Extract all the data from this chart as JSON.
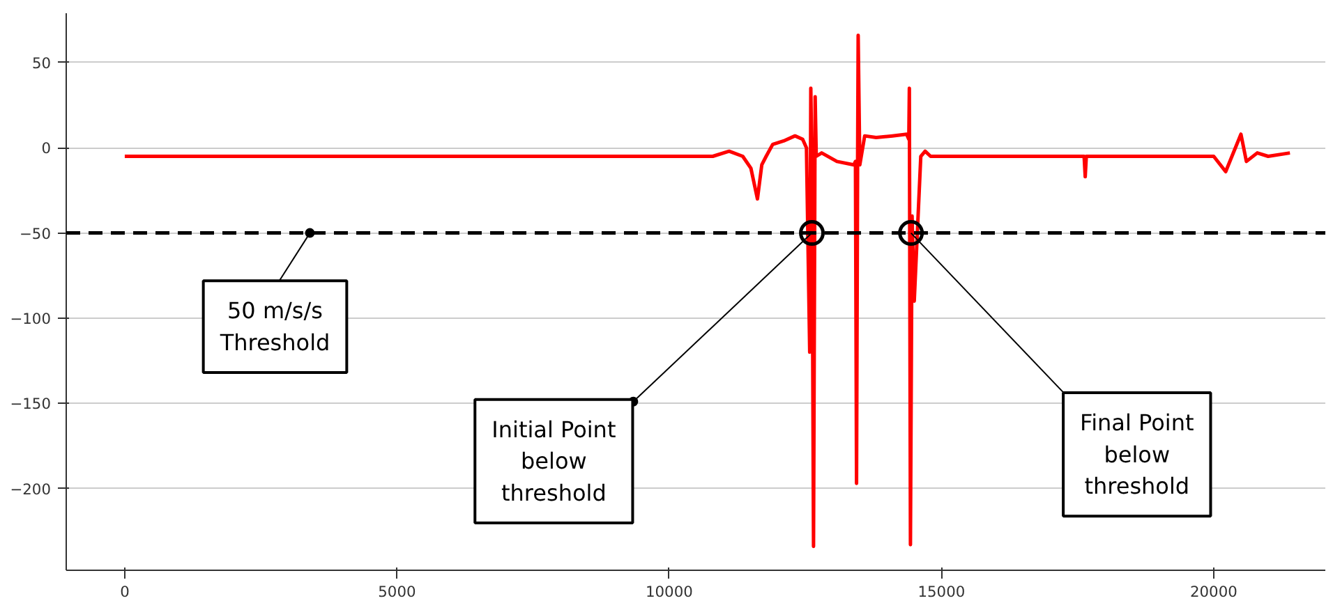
{
  "chart_data": {
    "type": "line",
    "x": [
      0,
      1000,
      2000,
      3000,
      4000,
      5000,
      6000,
      7000,
      8000,
      9000,
      10000,
      10800,
      11100,
      11350,
      11500,
      11620,
      11700,
      11780,
      11900,
      12100,
      12310,
      12450,
      12520,
      12580,
      12600,
      12620,
      12650,
      12680,
      12700,
      12800,
      13080,
      13390,
      13420,
      13440,
      13460,
      13470,
      13500,
      13590,
      13800,
      14100,
      14360,
      14400,
      14410,
      14430,
      14460,
      14500,
      14620,
      14700,
      14800,
      15500,
      16500,
      17500,
      17620,
      17640,
      17660,
      18500,
      19500,
      20000,
      20220,
      20500,
      20600,
      20800,
      21000,
      21400
    ],
    "series": [
      {
        "color": "#ff0000",
        "values": [
          -5,
          -5,
          -5,
          -5,
          -5,
          -5,
          -5,
          -5,
          -5,
          -5,
          -5,
          -5,
          -2,
          -5,
          -12,
          -30,
          -10,
          -5,
          2,
          4,
          7,
          5,
          0,
          -120,
          35,
          -10,
          -234,
          30,
          -5,
          -3,
          -8,
          -10,
          -8,
          -197,
          -5,
          66,
          -10,
          7,
          6,
          7,
          8,
          5,
          35,
          -233,
          -40,
          -90,
          -5,
          -2,
          -5,
          -5,
          -5,
          -5,
          -5,
          -17,
          -5,
          -5,
          -5,
          -5,
          -14,
          8,
          -8,
          -3,
          -5,
          -3
        ]
      }
    ],
    "xlim": [
      -1075,
      22050
    ],
    "ylim": [
      -248,
      79
    ],
    "xticks": [
      0,
      5000,
      10000,
      15000,
      20000
    ],
    "yticks": [
      {
        "value": -200,
        "label": "−200"
      },
      {
        "value": -150,
        "label": "−150"
      },
      {
        "value": -100,
        "label": "−100"
      },
      {
        "value": -50,
        "label": "−50"
      },
      0,
      50
    ],
    "grid": "y",
    "ref_lines": [
      {
        "axis": "y",
        "value": -50,
        "color": "#000000",
        "line_style": "dashed"
      }
    ],
    "annotations": [
      {
        "text": "50 m/s/s\nThreshold",
        "x": 3400,
        "y": -50
      },
      {
        "text": "Initial Point\nbelow\nthreshold",
        "x": 12620,
        "y": -50
      },
      {
        "text": "Final Point\nbelow\nthreshold",
        "x": 14440,
        "y": -50
      }
    ]
  }
}
